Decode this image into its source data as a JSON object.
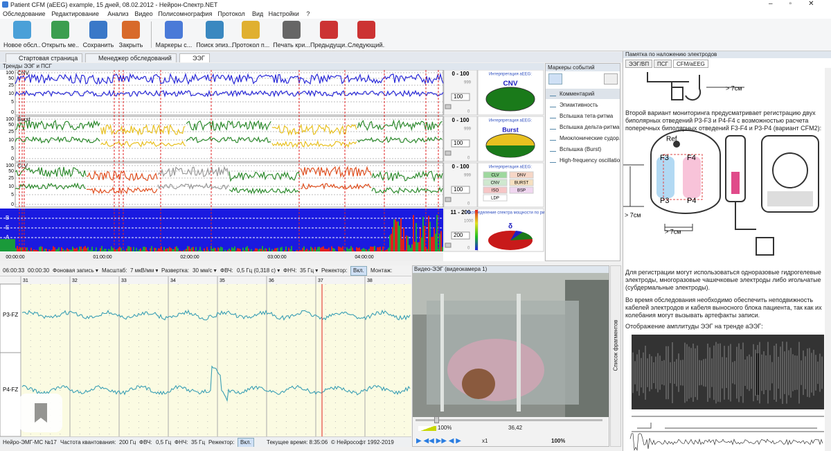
{
  "window": {
    "title": "Patient CFM (aEEG) example, 15 дней, 08.02.2012 - Нейрон-Спектр.NET"
  },
  "menu": [
    "Обследование",
    "Редактирование",
    "Анализ",
    "Видео",
    "Полисомнография",
    "Протокол",
    "Вид",
    "Настройки",
    "?"
  ],
  "toolbar": [
    "Новое обсл...",
    "Открыть ме...",
    "Сохранить",
    "Закрыть",
    "Маркеры с...",
    "Поиск эпиз...",
    "Протокол п...",
    "Печать кри...",
    "Предыдущи...",
    "Следующий..."
  ],
  "tabs": [
    "Стартовая страница",
    "Менеджер обследований",
    "ЭЭГ"
  ],
  "trends": {
    "title": "Тренды ЭЭГ и ПСГ",
    "tracks": [
      {
        "label": "CNV",
        "scale": [
          "100",
          "50",
          "25",
          "10",
          "5",
          "0"
        ],
        "range": "0 - 100",
        "max": "999",
        "value": "100",
        "min": "0",
        "interp_title": "Интерпретация аЕЕG:",
        "interp": "CNV"
      },
      {
        "label": "Burst",
        "scale": [
          "100",
          "50",
          "25",
          "10",
          "5",
          "0"
        ],
        "range": "0 - 100",
        "max": "999",
        "value": "100",
        "min": "0",
        "interp_title": "Интерпретация аЕЕG:",
        "interp": "Burst"
      },
      {
        "label": "CLV",
        "scale": [
          "100",
          "50",
          "25",
          "10",
          "5",
          "0"
        ],
        "range": "0 - 100",
        "max": "999",
        "value": "100",
        "min": "0",
        "interp_title": "Интерпретация аЕЕG:",
        "classes": [
          "CLV",
          "DNV",
          "CNV",
          "BURST",
          "ISO",
          "BSP",
          "LDP"
        ]
      },
      {
        "bands": [
          "B",
          "E",
          "A"
        ],
        "range": "11 - 200",
        "max": "1000",
        "value": "200",
        "min": "0",
        "interp_title": "Распределение спектра мощности по ритмам",
        "interp": "δ"
      }
    ],
    "time_labels": [
      "00:00:00",
      "01:00:00",
      "02:00:00",
      "03:00:00",
      "04:00:00"
    ]
  },
  "markers": {
    "title": "Маркеры событий",
    "items": [
      "Комментарий",
      "Эпиактивность",
      "Вспышка тета-ритма",
      "Вспышка дельта-ритма",
      "Миоклонические судор...",
      "Вспышка (Burst)",
      "High-frequency oscillatio..."
    ]
  },
  "eeg": {
    "toolbar": [
      "06:00:33",
      "00:00:30",
      "Фоновая запись ▾",
      "Масштаб:",
      "7 мкВ/мм ▾",
      "Развертка:",
      "30 мм/с ▾",
      "ФВЧ:",
      "0,5 Гц (0,318 с) ▾",
      "ФНЧ:",
      "35 Гц ▾",
      "Режектор:",
      "Вкл.",
      "Монтаж:"
    ],
    "seconds": [
      31,
      32,
      33,
      34,
      35,
      36,
      37,
      38
    ],
    "channels": [
      "P3-FZ",
      "P4-FZ"
    ]
  },
  "status": [
    "Нейро-ЭМГ-МС №17",
    "Частота квантования:",
    "200 Гц",
    "ФВЧ:",
    "0,5 Гц",
    "ФНЧ:",
    "35 Гц",
    "Режектор:",
    "Вкл.",
    "Текущее время: 8:35:06",
    "© Нейрософт 1992-2019"
  ],
  "video": {
    "title": "Видео-ЭЭГ (видеокамера 1)",
    "volume": "100%",
    "time": "36,42",
    "speed": "x1",
    "zoom": "100%",
    "side_tab": "Список фрагментов"
  },
  "guide": {
    "title": "Памятка по наложению электродов",
    "tabs": [
      "ЭЭГ/ВП",
      "ПСГ",
      "CFM/aEEG"
    ],
    "top_label": "> 7см",
    "p1": "Второй вариант мониторинга предусматривает регистрацию двух биполярных отведений P3-F3 и P4-F4 с возможностью расчета поперечных биполярных отведений F3-F4 и P3-P4 (вариант CFM2):",
    "diagram": {
      "ref": "Ref",
      "electrodes": [
        "F3",
        "F4",
        "P3",
        "P4"
      ],
      "side_label": "> 7см",
      "bottom_label": "> 7см"
    },
    "p2": "Для регистрации могут использоваться одноразовые гидрогелевые электроды, многоразовые чашечковые электроды либо игольчатые (субдермальные электроды).",
    "p3": "Во время обследования необходимо обеспечить неподвижность кабелей электродов и кабеля выносного блока пациента, так как их колебания могут вызывать артефакты записи.",
    "p4": "Отображение амплитуды ЭЭГ на тренде аЭЭГ:"
  }
}
